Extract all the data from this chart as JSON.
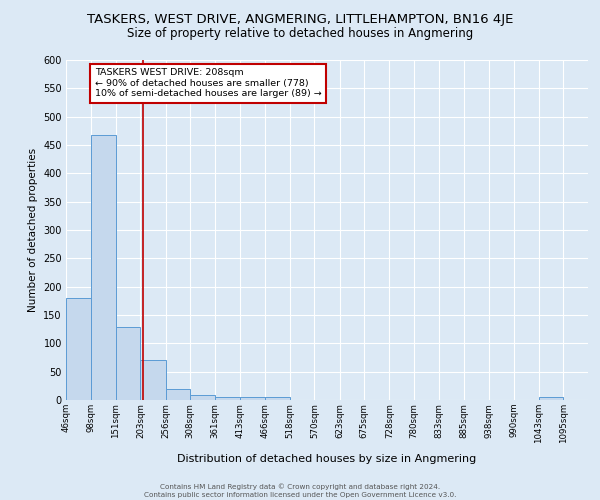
{
  "title": "TASKERS, WEST DRIVE, ANGMERING, LITTLEHAMPTON, BN16 4JE",
  "subtitle": "Size of property relative to detached houses in Angmering",
  "xlabel": "Distribution of detached houses by size in Angmering",
  "ylabel": "Number of detached properties",
  "footer_line1": "Contains HM Land Registry data © Crown copyright and database right 2024.",
  "footer_line2": "Contains public sector information licensed under the Open Government Licence v3.0.",
  "bin_labels": [
    "46sqm",
    "98sqm",
    "151sqm",
    "203sqm",
    "256sqm",
    "308sqm",
    "361sqm",
    "413sqm",
    "466sqm",
    "518sqm",
    "570sqm",
    "623sqm",
    "675sqm",
    "728sqm",
    "780sqm",
    "833sqm",
    "885sqm",
    "938sqm",
    "990sqm",
    "1043sqm",
    "1095sqm"
  ],
  "bar_values": [
    180,
    468,
    128,
    70,
    20,
    8,
    5,
    5,
    5,
    0,
    0,
    0,
    0,
    0,
    0,
    0,
    0,
    0,
    0,
    5,
    0
  ],
  "bar_color": "#c5d8ed",
  "bar_edge_color": "#5b9bd5",
  "bg_color": "#dce9f5",
  "red_line_x": 208,
  "bin_edges_sqm": [
    46,
    98,
    151,
    203,
    256,
    308,
    361,
    413,
    466,
    518,
    570,
    623,
    675,
    728,
    780,
    833,
    885,
    938,
    990,
    1043,
    1095,
    1147
  ],
  "annotation_title": "TASKERS WEST DRIVE: 208sqm",
  "annotation_line1": "← 90% of detached houses are smaller (778)",
  "annotation_line2": "10% of semi-detached houses are larger (89) →",
  "annotation_box_color": "#ffffff",
  "annotation_border_color": "#c00000",
  "ylim": [
    0,
    600
  ],
  "yticks": [
    0,
    50,
    100,
    150,
    200,
    250,
    300,
    350,
    400,
    450,
    500,
    550,
    600
  ],
  "grid_color": "#ffffff",
  "title_fontsize": 9.5,
  "subtitle_fontsize": 8.5
}
